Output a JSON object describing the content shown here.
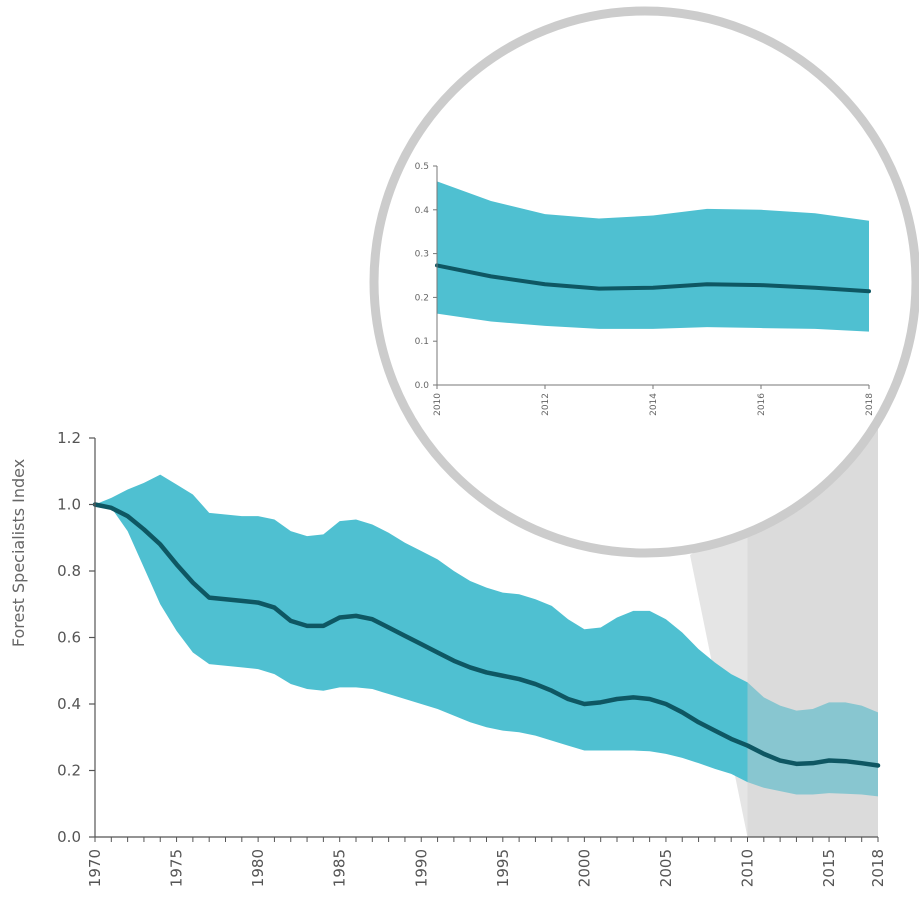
{
  "chart_data": [
    {
      "type": "area",
      "ylabel": "Forest Specialists Index",
      "ylim": [
        0.0,
        1.2
      ],
      "xlim": [
        1970,
        2018
      ],
      "y_ticks": [
        "0.0",
        "0.2",
        "0.4",
        "0.6",
        "0.8",
        "1.0",
        "1.2"
      ],
      "x_ticks": [
        "1970",
        "1975",
        "1980",
        "1985",
        "1990",
        "1995",
        "2000",
        "2005",
        "2010",
        "2015",
        "2018"
      ],
      "highlight_range": [
        2010,
        2018
      ],
      "colors": {
        "band": "#4fc0d1",
        "line": "#0e5763",
        "highlight": "#cfcfcf",
        "axis": "#555555"
      },
      "x": [
        1970,
        1971,
        1972,
        1973,
        1974,
        1975,
        1976,
        1977,
        1978,
        1979,
        1980,
        1981,
        1982,
        1983,
        1984,
        1985,
        1986,
        1987,
        1988,
        1989,
        1990,
        1991,
        1992,
        1993,
        1994,
        1995,
        1996,
        1997,
        1998,
        1999,
        2000,
        2001,
        2002,
        2003,
        2004,
        2005,
        2006,
        2007,
        2008,
        2009,
        2010,
        2011,
        2012,
        2013,
        2014,
        2015,
        2016,
        2017,
        2018
      ],
      "index": [
        1.0,
        0.99,
        0.965,
        0.925,
        0.88,
        0.82,
        0.765,
        0.72,
        0.715,
        0.71,
        0.705,
        0.69,
        0.65,
        0.635,
        0.635,
        0.66,
        0.665,
        0.655,
        0.63,
        0.605,
        0.58,
        0.555,
        0.53,
        0.51,
        0.495,
        0.485,
        0.475,
        0.46,
        0.44,
        0.415,
        0.4,
        0.405,
        0.415,
        0.42,
        0.415,
        0.4,
        0.375,
        0.345,
        0.32,
        0.295,
        0.275,
        0.25,
        0.23,
        0.22,
        0.222,
        0.23,
        0.228,
        0.222,
        0.215
      ],
      "upper": [
        1.0,
        1.02,
        1.045,
        1.065,
        1.09,
        1.06,
        1.03,
        0.975,
        0.97,
        0.965,
        0.965,
        0.955,
        0.92,
        0.905,
        0.91,
        0.95,
        0.955,
        0.94,
        0.915,
        0.885,
        0.86,
        0.835,
        0.8,
        0.77,
        0.75,
        0.735,
        0.73,
        0.715,
        0.695,
        0.655,
        0.625,
        0.63,
        0.66,
        0.68,
        0.68,
        0.655,
        0.615,
        0.565,
        0.525,
        0.49,
        0.465,
        0.42,
        0.395,
        0.38,
        0.385,
        0.405,
        0.405,
        0.395,
        0.375
      ],
      "lower": [
        1.0,
        0.99,
        0.92,
        0.81,
        0.7,
        0.62,
        0.555,
        0.52,
        0.515,
        0.51,
        0.505,
        0.49,
        0.46,
        0.445,
        0.44,
        0.45,
        0.45,
        0.445,
        0.43,
        0.415,
        0.4,
        0.385,
        0.365,
        0.345,
        0.33,
        0.32,
        0.315,
        0.305,
        0.29,
        0.275,
        0.26,
        0.26,
        0.26,
        0.26,
        0.258,
        0.25,
        0.238,
        0.222,
        0.205,
        0.19,
        0.165,
        0.148,
        0.138,
        0.128,
        0.128,
        0.132,
        0.13,
        0.128,
        0.122
      ]
    },
    {
      "type": "area",
      "ylim": [
        0.0,
        0.5
      ],
      "xlim": [
        2010,
        2018
      ],
      "y_ticks": [
        "0.0",
        "0.1",
        "0.2",
        "0.3",
        "0.4",
        "0.5"
      ],
      "x_ticks": [
        "2010",
        "2012",
        "2014",
        "2016",
        "2018"
      ],
      "x": [
        2010,
        2011,
        2012,
        2013,
        2014,
        2015,
        2016,
        2017,
        2018
      ],
      "index": [
        0.273,
        0.248,
        0.23,
        0.22,
        0.222,
        0.23,
        0.228,
        0.222,
        0.214
      ],
      "upper": [
        0.465,
        0.42,
        0.39,
        0.38,
        0.387,
        0.402,
        0.4,
        0.392,
        0.375
      ],
      "lower": [
        0.163,
        0.145,
        0.135,
        0.128,
        0.128,
        0.132,
        0.13,
        0.128,
        0.122
      ]
    }
  ]
}
